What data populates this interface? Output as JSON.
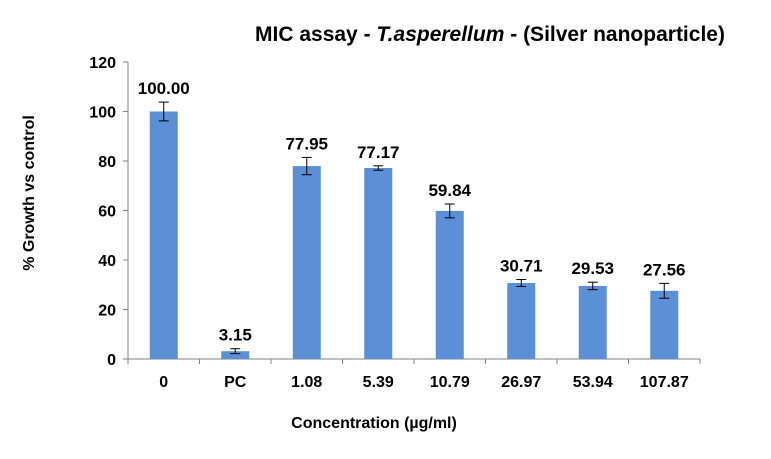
{
  "chart_data": {
    "type": "bar",
    "title": {
      "prefix": "MIC assay - ",
      "italic": "T.asperellum",
      "suffix": " - (Silver nanoparticle)"
    },
    "xlabel": "Concentration (µg/ml)",
    "ylabel": "% Growth vs control",
    "ylim": [
      0,
      120
    ],
    "yticks": [
      0,
      20,
      40,
      60,
      80,
      100,
      120
    ],
    "grid": false,
    "legend": "none",
    "bar_color": "#5b8fd6",
    "categories": [
      "0",
      "PC",
      "1.08",
      "5.39",
      "10.79",
      "26.97",
      "53.94",
      "107.87"
    ],
    "values": [
      100.0,
      3.15,
      77.95,
      77.17,
      59.84,
      30.71,
      29.53,
      27.56
    ],
    "value_labels": [
      "100.00",
      "3.15",
      "77.95",
      "77.17",
      "59.84",
      "30.71",
      "29.53",
      "27.56"
    ],
    "error": [
      3.8,
      1.0,
      3.5,
      0.9,
      2.8,
      1.4,
      1.5,
      3.0
    ]
  }
}
